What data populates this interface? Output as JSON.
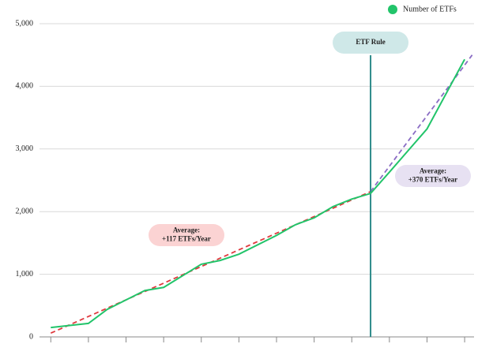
{
  "chart_data": {
    "type": "line",
    "x": [
      0,
      1,
      1.5,
      2,
      2.5,
      3,
      4,
      4.5,
      5,
      6,
      6.5,
      7,
      7.5,
      8,
      8.5,
      9,
      10,
      11
    ],
    "series": [
      {
        "name": "Number of ETFs",
        "color": "#22c46a",
        "values": [
          150,
          215,
          440,
          590,
          740,
          790,
          1160,
          1220,
          1320,
          1620,
          1790,
          1900,
          2080,
          2200,
          2290,
          2630,
          3320,
          4430
        ]
      }
    ],
    "trend_lines": [
      {
        "color": "#e0393e",
        "x": [
          0,
          8.5
        ],
        "values": [
          60,
          2320
        ]
      },
      {
        "color": "#8a6cc4",
        "x": [
          8.5,
          11.2
        ],
        "values": [
          2320,
          4500
        ]
      }
    ],
    "rule_x": 8.5,
    "annotations": [
      {
        "lines": [
          "ETF Rule"
        ]
      },
      {
        "lines": [
          "Average:",
          "+117 ETFs/Year"
        ]
      },
      {
        "lines": [
          "Average:",
          "+370 ETFs/Year"
        ]
      }
    ],
    "xlim": [
      -0.3,
      11.25
    ],
    "xticks": [
      0,
      1,
      2,
      3,
      4,
      5,
      6,
      7,
      8,
      9,
      10,
      11
    ],
    "ylim": [
      0,
      5000
    ],
    "yticks": [
      0,
      {
        "value": 1000,
        "label": "1,000"
      },
      {
        "value": 2000,
        "label": "2,000"
      },
      {
        "value": 3000,
        "label": "3,000"
      },
      {
        "value": 4000,
        "label": "4,000"
      },
      {
        "value": 5000,
        "label": "5,000"
      }
    ],
    "grid": true,
    "legend": "top-right"
  }
}
